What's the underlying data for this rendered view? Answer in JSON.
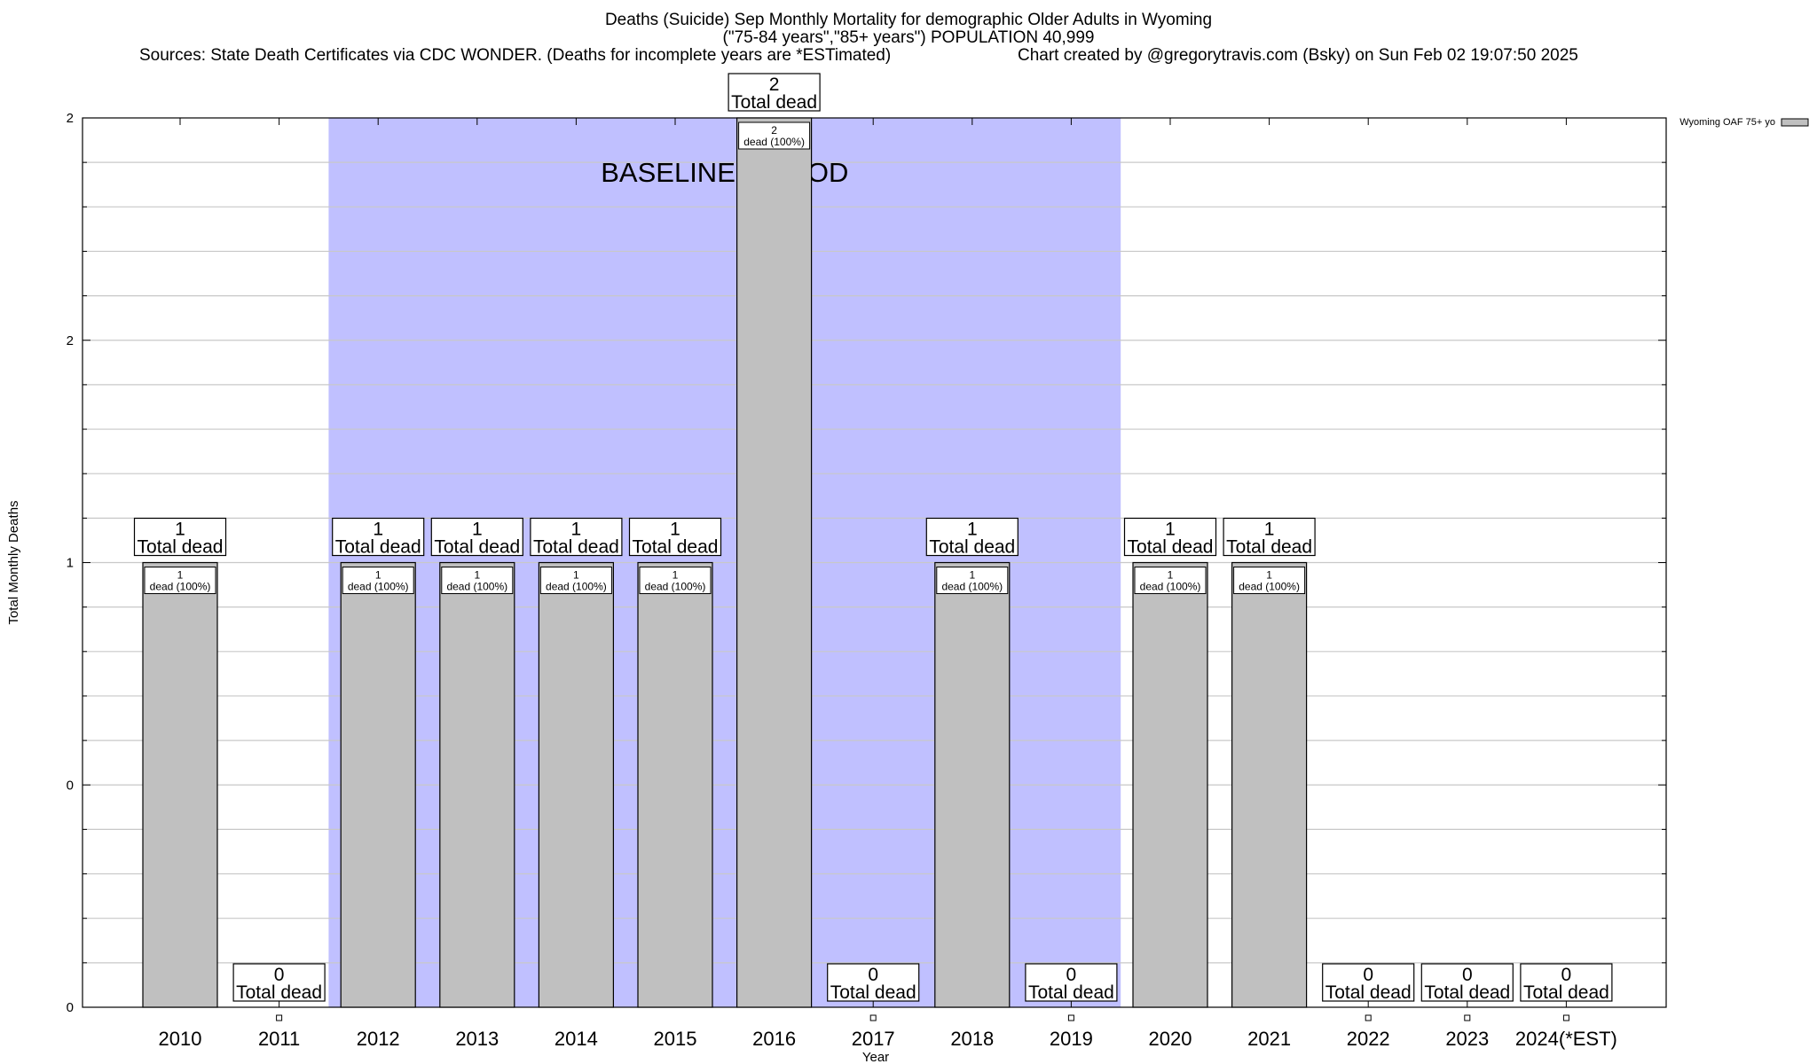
{
  "header": {
    "title": "Deaths (Suicide) Sep Monthly Mortality for demographic Older Adults in Wyoming",
    "subtitle": "(\"75-84 years\",\"85+ years\") POPULATION 40,999",
    "source": "Sources: State Death Certificates via CDC WONDER. (Deaths for incomplete years are *ESTimated)",
    "credit": "Chart created by @gregorytravis.com (Bsky) on Sun Feb 02 19:07:50 2025"
  },
  "chart_data": {
    "type": "bar",
    "xlabel": "Year",
    "ylabel": "Total Monthly Deaths",
    "ylim": [
      0,
      2
    ],
    "y_tick_labels": [
      "0",
      "0",
      "1",
      "2",
      "2"
    ],
    "grid": true,
    "legend": {
      "position": "top-right",
      "entries": [
        "Wyoming OAF 75+ yo"
      ]
    },
    "categories": [
      "2010",
      "2011",
      "2012",
      "2013",
      "2014",
      "2015",
      "2016",
      "2017",
      "2018",
      "2019",
      "2020",
      "2021",
      "2022",
      "2023",
      "2024(*EST)"
    ],
    "series": [
      {
        "name": "Wyoming OAF 75+ yo",
        "values": [
          1,
          0,
          1,
          1,
          1,
          1,
          2,
          0,
          1,
          0,
          1,
          1,
          0,
          0,
          0
        ],
        "color": "#c0c0c0"
      }
    ],
    "total_labels": [
      "1",
      "0",
      "1",
      "1",
      "1",
      "1",
      "2",
      "0",
      "1",
      "0",
      "1",
      "1",
      "0",
      "0",
      "0"
    ],
    "total_suffix": "Total dead",
    "inner_labels": [
      {
        "count": "1",
        "text": "dead (100%)"
      },
      null,
      {
        "count": "1",
        "text": "dead (100%)"
      },
      {
        "count": "1",
        "text": "dead (100%)"
      },
      {
        "count": "1",
        "text": "dead (100%)"
      },
      {
        "count": "1",
        "text": "dead (100%)"
      },
      {
        "count": "2",
        "text": "dead (100%)"
      },
      null,
      {
        "count": "1",
        "text": "dead (100%)"
      },
      null,
      {
        "count": "1",
        "text": "dead (100%)"
      },
      {
        "count": "1",
        "text": "dead (100%)"
      },
      null,
      null,
      null
    ],
    "annotations": [
      {
        "text": "BASELINE PERIOD",
        "from_category": "2012",
        "to_category": "2019",
        "color": "#c0c0ff"
      }
    ]
  }
}
